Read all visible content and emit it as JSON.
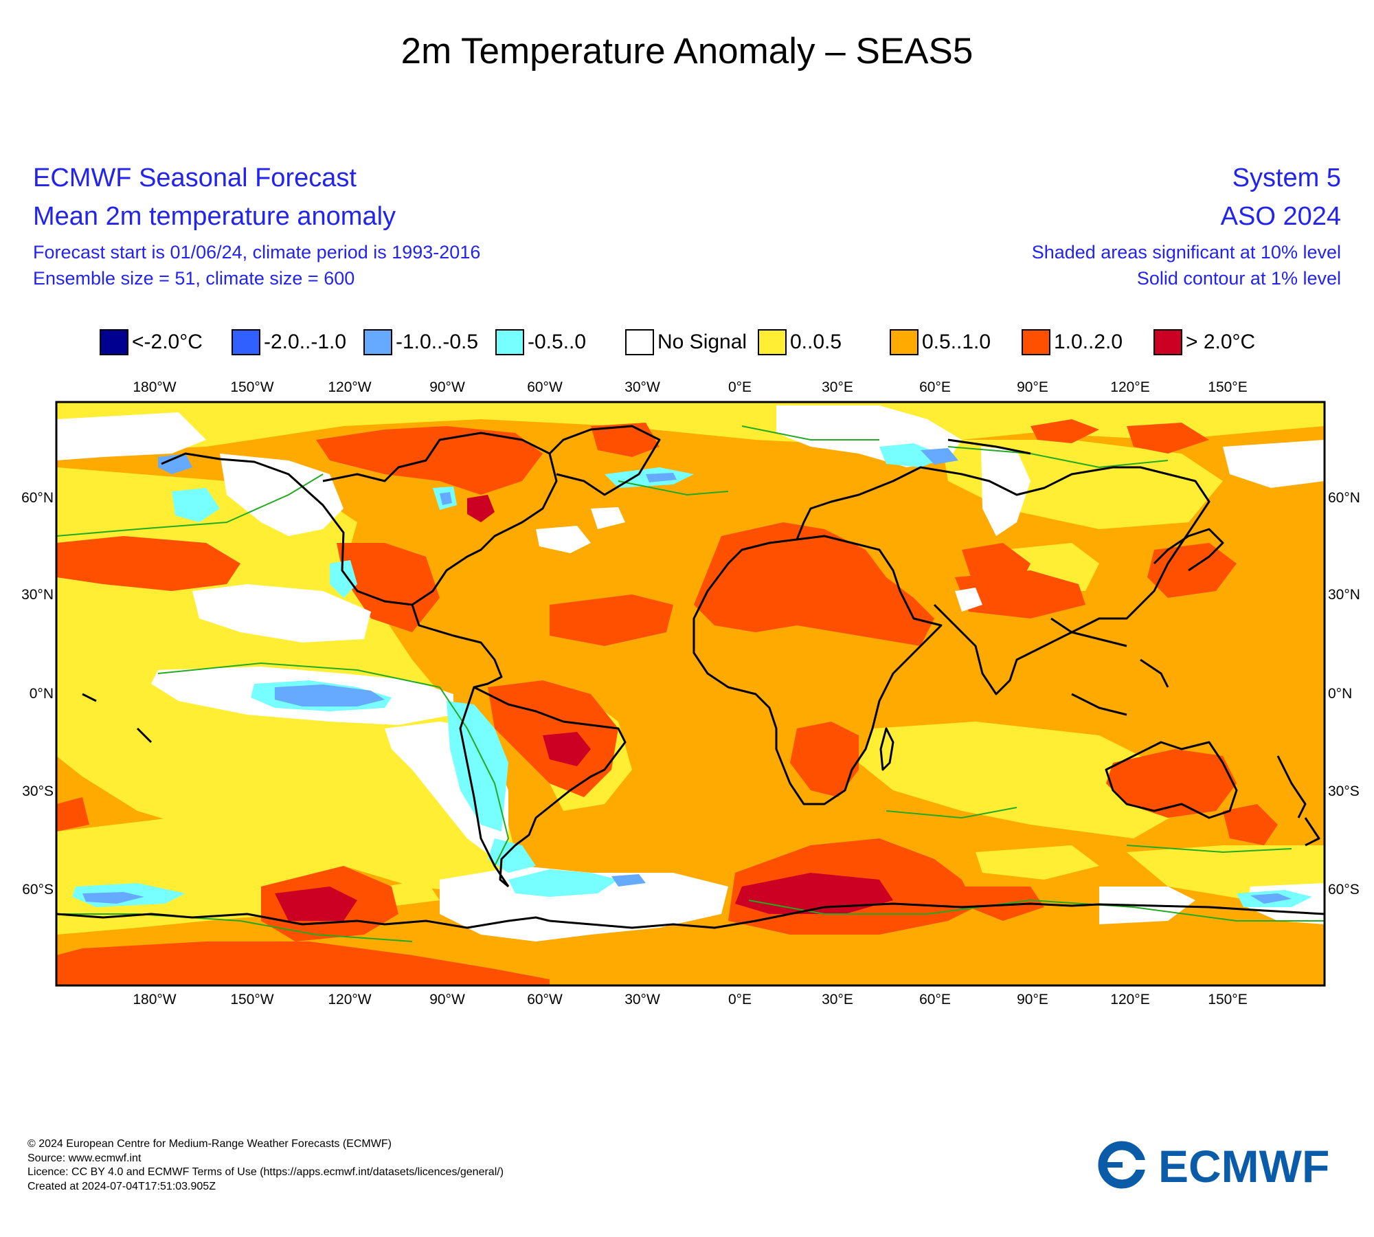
{
  "page_title": "2m Temperature Anomaly – SEAS5",
  "header": {
    "left_line1": "ECMWF Seasonal Forecast",
    "left_line2": "Mean 2m temperature anomaly",
    "left_line3": "Forecast start is 01/06/24, climate period is 1993-2016",
    "left_line4": "Ensemble size = 51, climate size = 600",
    "right_line1": "System 5",
    "right_line2": "ASO 2024",
    "right_line3": "Shaded areas significant at 10% level",
    "right_line4": "Solid contour at 1% level"
  },
  "legend": [
    {
      "label": "<-2.0°C",
      "color": "#000090"
    },
    {
      "label": "-2.0..-1.0",
      "color": "#3060ff"
    },
    {
      "label": "-1.0..-0.5",
      "color": "#66aaff"
    },
    {
      "label": "-0.5..0",
      "color": "#77ffff"
    },
    {
      "label": "No Signal",
      "color": "#ffffff"
    },
    {
      "label": "0..0.5",
      "color": "#ffee33"
    },
    {
      "label": "0.5..1.0",
      "color": "#ffaa00"
    },
    {
      "label": "1.0..2.0",
      "color": "#ff5000"
    },
    {
      "label": "> 2.0°C",
      "color": "#cc0022"
    }
  ],
  "map": {
    "lon_labels": [
      "180°W",
      "150°W",
      "120°W",
      "90°W",
      "60°W",
      "30°W",
      "0°E",
      "30°E",
      "60°E",
      "90°E",
      "120°E",
      "150°E"
    ],
    "lat_labels": [
      "60°N",
      "30°N",
      "0°N",
      "30°S",
      "60°S"
    ],
    "colors": {
      "base": "#ffaa00",
      "low_positive": "#ffee33",
      "high": "#ff5000",
      "very_high": "#cc0022",
      "no_signal": "#ffffff",
      "weak_negative": "#77ffff",
      "mid_negative": "#66aaff",
      "coast": "#000000",
      "contour": "#22aa22",
      "frame": "#000000"
    }
  },
  "footer": {
    "line1": "© 2024 European Centre for Medium-Range Weather Forecasts (ECMWF)",
    "line2": "Source: www.ecmwf.int",
    "line3": "Licence: CC BY 4.0 and ECMWF Terms of Use (https://apps.ecmwf.int/datasets/licences/general/)",
    "line4": "Created at 2024-07-04T17:51:03.905Z"
  },
  "logo": {
    "text": "ECMWF",
    "color": "#0a5ca8"
  }
}
